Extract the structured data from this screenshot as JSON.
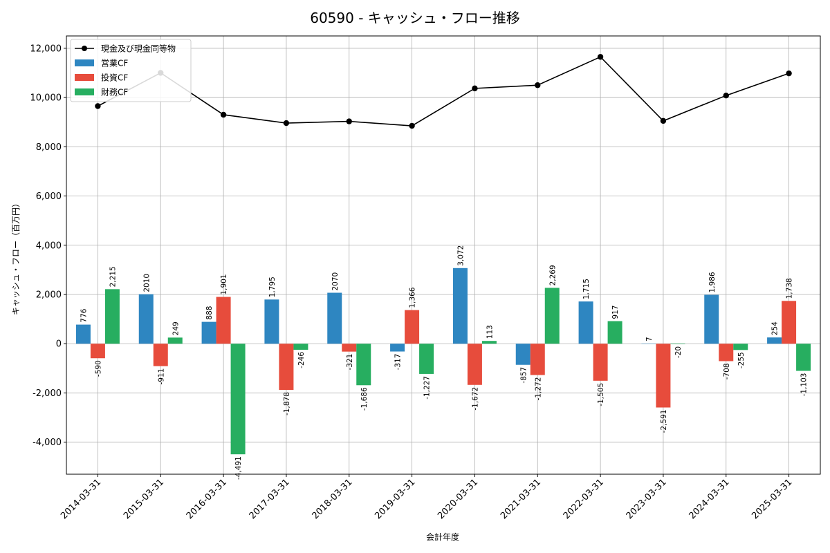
{
  "chart_data": {
    "type": "bar",
    "title": "60590 - キャッシュ・フロー推移",
    "xlabel": "会計年度",
    "ylabel": "キャッシュ・フロー（百万円）",
    "ylim": [
      -5300,
      12500
    ],
    "yticks": [
      -4000,
      -2000,
      0,
      2000,
      4000,
      6000,
      8000,
      10000,
      12000
    ],
    "ytick_labels": [
      "-4,000",
      "-2,000",
      "0",
      "2,000",
      "4,000",
      "6,000",
      "8,000",
      "10,000",
      "12,000"
    ],
    "grid": true,
    "legend_position": "top-left",
    "categories": [
      "2014-03-31",
      "2015-03-31",
      "2016-03-31",
      "2017-03-31",
      "2018-03-31",
      "2019-03-31",
      "2020-03-31",
      "2021-03-31",
      "2022-03-31",
      "2023-03-31",
      "2024-03-31",
      "2025-03-31"
    ],
    "series": [
      {
        "name": "営業CF",
        "kind": "bar",
        "color": "#2e86c1",
        "values": [
          776,
          2010,
          888,
          1795,
          2070,
          -317,
          3072,
          -857,
          1715,
          7,
          1986,
          254
        ],
        "labels": [
          "776",
          "2010",
          "888",
          "1,795",
          "2070",
          "-317",
          "3,072",
          "-857",
          "1,715",
          "7",
          "1,986",
          "254"
        ]
      },
      {
        "name": "投資CF",
        "kind": "bar",
        "color": "#e74c3c",
        "values": [
          -590,
          -911,
          1901,
          -1878,
          -321,
          1366,
          -1672,
          -1272,
          -1505,
          -2591,
          -708,
          1738
        ],
        "labels": [
          "-590",
          "-911",
          "1,901",
          "-1,878",
          "-321",
          "1,366",
          "-1,672",
          "-1,272",
          "-1,505",
          "-2,591",
          "-708",
          "1,738"
        ]
      },
      {
        "name": "財務CF",
        "kind": "bar",
        "color": "#27ae60",
        "values": [
          2215,
          249,
          -4491,
          -246,
          -1686,
          -1227,
          113,
          2269,
          917,
          -20,
          -255,
          -1103
        ],
        "labels": [
          "2,215",
          "249",
          "-4,491",
          "-246",
          "-1,686",
          "-1,227",
          "113",
          "2,269",
          "917",
          "-20",
          "-255",
          "-1,103"
        ]
      },
      {
        "name": "現金及び現金同等物",
        "kind": "line",
        "color": "#000000",
        "values": [
          9650,
          11000,
          9300,
          8960,
          9030,
          8850,
          10370,
          10500,
          11650,
          9050,
          10080,
          10980
        ]
      }
    ]
  }
}
